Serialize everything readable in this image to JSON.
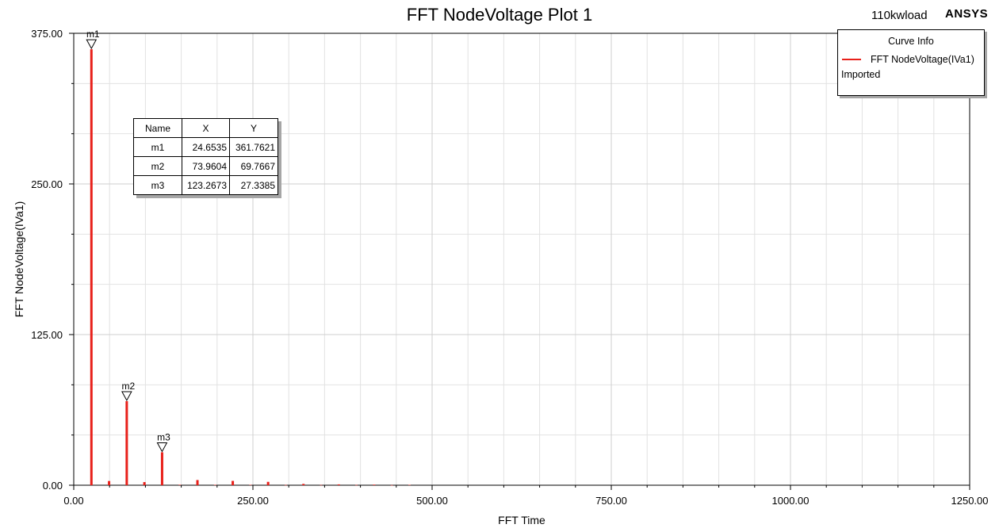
{
  "header": {
    "title": "FFT NodeVoltage Plot 1",
    "project": "110kwload",
    "brand": "ANSYS"
  },
  "legend": {
    "title": "Curve Info",
    "series_label": "FFT NodeVoltage(IVa1)",
    "sub_label": "Imported",
    "color": "#e8201a"
  },
  "marker_table": {
    "headers": [
      "Name",
      "X",
      "Y"
    ],
    "rows": [
      [
        "m1",
        "24.6535",
        "361.7621"
      ],
      [
        "m2",
        "73.9604",
        "69.7667"
      ],
      [
        "m3",
        "123.2673",
        "27.3385"
      ]
    ]
  },
  "chart_data": {
    "type": "bar",
    "title": "FFT NodeVoltage Plot 1",
    "xlabel": "FFT Time",
    "ylabel": "FFT NodeVoltage(IVa1)",
    "xlim": [
      0,
      1250
    ],
    "ylim": [
      0,
      375
    ],
    "xticks": [
      "0.00",
      "250.00",
      "500.00",
      "750.00",
      "1000.00",
      "1250.00"
    ],
    "yticks": [
      "0.00",
      "125.00",
      "250.00",
      "375.00"
    ],
    "grid": true,
    "legend_position": "top-right",
    "series": [
      {
        "name": "FFT NodeVoltage(IVa1)",
        "color": "#e8201a",
        "x": [
          24.6535,
          49.3,
          73.9604,
          98.6,
          123.2673,
          147.9,
          172.6,
          197.2,
          221.9,
          246.5,
          271.2,
          295.8,
          320.5,
          345.1,
          369.8,
          394.4,
          419.1,
          443.8,
          468.4
        ],
        "y": [
          361.7621,
          3.5,
          69.7667,
          2.6,
          27.3385,
          0.4,
          4.3,
          0.3,
          3.6,
          0.3,
          2.8,
          0.2,
          1.1,
          0.2,
          0.7,
          0.2,
          0.5,
          0.1,
          0.3
        ]
      }
    ],
    "markers": [
      {
        "name": "m1",
        "x": 24.6535,
        "y": 361.7621
      },
      {
        "name": "m2",
        "x": 73.9604,
        "y": 69.7667
      },
      {
        "name": "m3",
        "x": 123.2673,
        "y": 27.3385
      }
    ]
  }
}
